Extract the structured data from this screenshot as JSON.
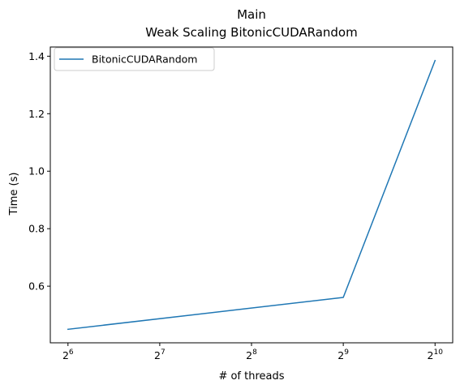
{
  "chart_data": {
    "type": "line",
    "title_lines": [
      "Main",
      "Weak Scaling BitonicCUDARandom"
    ],
    "xlabel": "# of threads",
    "ylabel": "Time (s)",
    "x_scale": "log2",
    "x": [
      64,
      512,
      1024
    ],
    "x_tick_values": [
      64,
      128,
      256,
      512,
      1024
    ],
    "x_tick_labels": [
      {
        "base": "2",
        "exp": "6"
      },
      {
        "base": "2",
        "exp": "7"
      },
      {
        "base": "2",
        "exp": "8"
      },
      {
        "base": "2",
        "exp": "9"
      },
      {
        "base": "2",
        "exp": "10"
      }
    ],
    "xlim": [
      56,
      1170
    ],
    "y_tick_values": [
      0.6,
      0.8,
      1.0,
      1.2,
      1.4
    ],
    "y_tick_labels": [
      "0.6",
      "0.8",
      "1.0",
      "1.2",
      "1.4"
    ],
    "ylim": [
      0.403,
      1.432
    ],
    "grid": false,
    "legend_position": "upper-left",
    "series": [
      {
        "name": "BitonicCUDARandom",
        "color": "#1f77b4",
        "values": [
          0.45,
          0.561,
          1.385
        ]
      }
    ]
  }
}
